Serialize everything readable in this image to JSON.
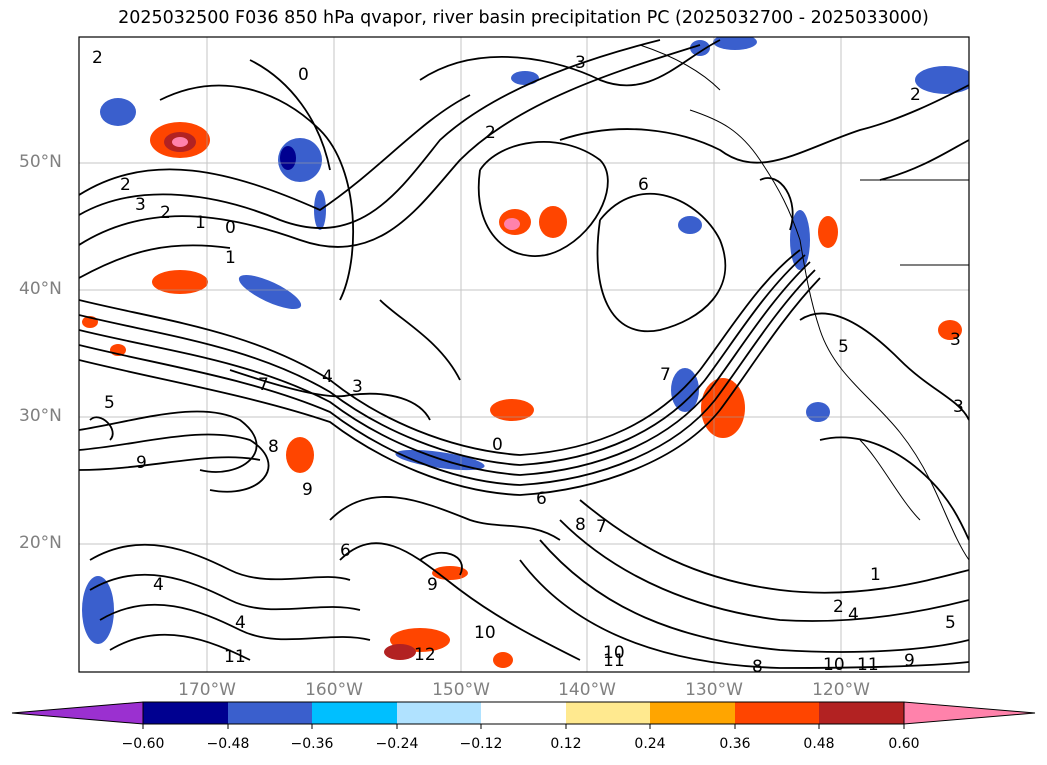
{
  "title": "2025032500 F036 850 hPa qvapor, river basin precipitation PC (2025032700 - 2025033000)",
  "map": {
    "latitude_labels": [
      "50°N",
      "40°N",
      "30°N",
      "20°N"
    ],
    "longitude_labels": [
      "170°W",
      "160°W",
      "150°W",
      "140°W",
      "130°W",
      "120°W"
    ],
    "contour_labels": [
      "2",
      "3",
      "2",
      "1",
      "0",
      "2",
      "0",
      "3",
      "2",
      "6",
      "7",
      "4",
      "3",
      "0",
      "8",
      "9",
      "5",
      "9",
      "6",
      "7",
      "8",
      "6",
      "1",
      "2",
      "4",
      "9",
      "11",
      "10",
      "12",
      "10",
      "11",
      "8",
      "9",
      "10",
      "11",
      "1",
      "2",
      "4",
      "5",
      "3",
      "7",
      "4",
      "5",
      "3"
    ],
    "gridlines": true,
    "coastlines": true
  },
  "colorbar": {
    "ticks": [
      "−0.60",
      "−0.48",
      "−0.36",
      "−0.24",
      "−0.12",
      "0.12",
      "0.24",
      "0.36",
      "0.48",
      "0.60"
    ],
    "colors": [
      "#9b30d0",
      "#000090",
      "#3a5fcd",
      "#00bfff",
      "#b0e2ff",
      "#ffffff",
      "#ffe98f",
      "#ffa500",
      "#ff4500",
      "#b22222",
      "#ff82ab"
    ],
    "extend": "both"
  }
}
